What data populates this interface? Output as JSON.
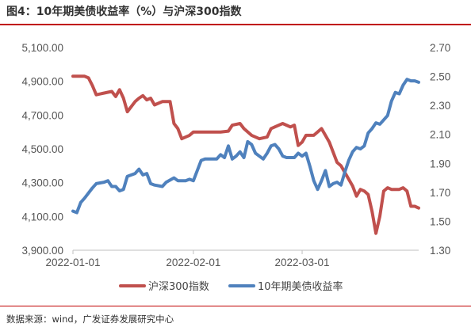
{
  "figure": {
    "title": "图4：10年期美债收益率（%）与沪深300指数",
    "source": "数据来源：wind，广发证券发展研究中心"
  },
  "colors": {
    "csi300": "#c0504d",
    "ust10y": "#4f81bd",
    "accent_rule": "#c00000"
  },
  "chart_data": {
    "type": "line",
    "title": "图4：10年期美债收益率（%）与沪深300指数",
    "x_axis": {
      "ticks": [
        "2022-01-01",
        "2022-02-01",
        "2022-03-01"
      ],
      "range": [
        "2022-01-01",
        "2022-03-31"
      ]
    },
    "y_left": {
      "ticks": [
        "5,100.00",
        "4,900.00",
        "4,700.00",
        "4,500.00",
        "4,300.00",
        "4,100.00",
        "3,900.00"
      ],
      "range": [
        3900,
        5100
      ]
    },
    "y_right": {
      "ticks": [
        "2.70",
        "2.50",
        "2.30",
        "2.10",
        "1.90",
        "1.70",
        "1.50",
        "1.30"
      ],
      "range": [
        1.3,
        2.7
      ]
    },
    "legend": {
      "position": "bottom"
    },
    "series": [
      {
        "name": "沪深300指数",
        "axis": "left",
        "color": "#c0504d",
        "points": [
          [
            "2022-01-01",
            4930
          ],
          [
            "2022-01-04",
            4930
          ],
          [
            "2022-01-05",
            4920
          ],
          [
            "2022-01-06",
            4875
          ],
          [
            "2022-01-07",
            4820
          ],
          [
            "2022-01-10",
            4835
          ],
          [
            "2022-01-11",
            4840
          ],
          [
            "2022-01-12",
            4810
          ],
          [
            "2022-01-13",
            4850
          ],
          [
            "2022-01-14",
            4800
          ],
          [
            "2022-01-15",
            4720
          ],
          [
            "2022-01-17",
            4780
          ],
          [
            "2022-01-18",
            4800
          ],
          [
            "2022-01-19",
            4815
          ],
          [
            "2022-01-20",
            4790
          ],
          [
            "2022-01-21",
            4800
          ],
          [
            "2022-01-22",
            4760
          ],
          [
            "2022-01-24",
            4780
          ],
          [
            "2022-01-26",
            4780
          ],
          [
            "2022-01-27",
            4650
          ],
          [
            "2022-01-28",
            4620
          ],
          [
            "2022-01-29",
            4560
          ],
          [
            "2022-01-31",
            4580
          ],
          [
            "2022-02-01",
            4600
          ],
          [
            "2022-02-08",
            4600
          ],
          [
            "2022-02-10",
            4605
          ],
          [
            "2022-02-11",
            4640
          ],
          [
            "2022-02-13",
            4650
          ],
          [
            "2022-02-14",
            4620
          ],
          [
            "2022-02-16",
            4580
          ],
          [
            "2022-02-18",
            4560
          ],
          [
            "2022-02-20",
            4570
          ],
          [
            "2022-02-21",
            4620
          ],
          [
            "2022-02-23",
            4640
          ],
          [
            "2022-02-24",
            4650
          ],
          [
            "2022-02-25",
            4640
          ],
          [
            "2022-02-26",
            4630
          ],
          [
            "2022-02-27",
            4640
          ],
          [
            "2022-02-28",
            4520
          ],
          [
            "2022-03-01",
            4540
          ],
          [
            "2022-03-02",
            4580
          ],
          [
            "2022-03-03",
            4580
          ],
          [
            "2022-03-04",
            4580
          ],
          [
            "2022-03-06",
            4620
          ],
          [
            "2022-03-07",
            4580
          ],
          [
            "2022-03-08",
            4540
          ],
          [
            "2022-03-09",
            4480
          ],
          [
            "2022-03-10",
            4420
          ],
          [
            "2022-03-11",
            4400
          ],
          [
            "2022-03-14",
            4280
          ],
          [
            "2022-03-15",
            4220
          ],
          [
            "2022-03-16",
            4260
          ],
          [
            "2022-03-17",
            4250
          ],
          [
            "2022-03-18",
            4230
          ],
          [
            "2022-03-19",
            4130
          ],
          [
            "2022-03-20",
            4000
          ],
          [
            "2022-03-21",
            4100
          ],
          [
            "2022-03-22",
            4250
          ],
          [
            "2022-03-23",
            4270
          ],
          [
            "2022-03-24",
            4260
          ],
          [
            "2022-03-25",
            4260
          ],
          [
            "2022-03-26",
            4260
          ],
          [
            "2022-03-27",
            4270
          ],
          [
            "2022-03-28",
            4250
          ],
          [
            "2022-03-29",
            4160
          ],
          [
            "2022-03-30",
            4160
          ],
          [
            "2022-03-31",
            4150
          ]
        ]
      },
      {
        "name": "10年期美债收益率",
        "axis": "right",
        "color": "#4f81bd",
        "points": [
          [
            "2022-01-01",
            1.57
          ],
          [
            "2022-01-02",
            1.56
          ],
          [
            "2022-01-03",
            1.63
          ],
          [
            "2022-01-04",
            1.66
          ],
          [
            "2022-01-06",
            1.73
          ],
          [
            "2022-01-07",
            1.76
          ],
          [
            "2022-01-09",
            1.77
          ],
          [
            "2022-01-10",
            1.78
          ],
          [
            "2022-01-11",
            1.74
          ],
          [
            "2022-01-12",
            1.74
          ],
          [
            "2022-01-13",
            1.71
          ],
          [
            "2022-01-14",
            1.72
          ],
          [
            "2022-01-15",
            1.81
          ],
          [
            "2022-01-17",
            1.83
          ],
          [
            "2022-01-18",
            1.86
          ],
          [
            "2022-01-19",
            1.82
          ],
          [
            "2022-01-20",
            1.83
          ],
          [
            "2022-01-21",
            1.76
          ],
          [
            "2022-01-22",
            1.75
          ],
          [
            "2022-01-24",
            1.74
          ],
          [
            "2022-01-25",
            1.77
          ],
          [
            "2022-01-27",
            1.8
          ],
          [
            "2022-01-28",
            1.78
          ],
          [
            "2022-01-30",
            1.78
          ],
          [
            "2022-01-31",
            1.79
          ],
          [
            "2022-02-01",
            1.78
          ],
          [
            "2022-02-03",
            1.92
          ],
          [
            "2022-02-04",
            1.93
          ],
          [
            "2022-02-07",
            1.93
          ],
          [
            "2022-02-08",
            1.96
          ],
          [
            "2022-02-09",
            1.94
          ],
          [
            "2022-02-10",
            2.02
          ],
          [
            "2022-02-11",
            1.93
          ],
          [
            "2022-02-12",
            1.95
          ],
          [
            "2022-02-13",
            1.98
          ],
          [
            "2022-02-14",
            1.94
          ],
          [
            "2022-02-15",
            2.05
          ],
          [
            "2022-02-16",
            2.03
          ],
          [
            "2022-02-17",
            1.97
          ],
          [
            "2022-02-19",
            1.93
          ],
          [
            "2022-02-20",
            1.97
          ],
          [
            "2022-02-21",
            2.02
          ],
          [
            "2022-02-22",
            2.03
          ],
          [
            "2022-02-23",
            2.0
          ],
          [
            "2022-02-24",
            1.95
          ],
          [
            "2022-02-25",
            1.94
          ],
          [
            "2022-02-26",
            1.94
          ],
          [
            "2022-02-27",
            1.94
          ],
          [
            "2022-02-28",
            1.97
          ],
          [
            "2022-03-01",
            1.95
          ],
          [
            "2022-03-02",
            1.97
          ],
          [
            "2022-03-03",
            1.88
          ],
          [
            "2022-03-04",
            1.78
          ],
          [
            "2022-03-05",
            1.72
          ],
          [
            "2022-03-06",
            1.78
          ],
          [
            "2022-03-07",
            1.85
          ],
          [
            "2022-03-08",
            1.74
          ],
          [
            "2022-03-09",
            1.76
          ],
          [
            "2022-03-10",
            1.77
          ],
          [
            "2022-03-11",
            1.75
          ],
          [
            "2022-03-12",
            1.84
          ],
          [
            "2022-03-13",
            1.92
          ],
          [
            "2022-03-14",
            1.98
          ],
          [
            "2022-03-15",
            2.01
          ],
          [
            "2022-03-16",
            2.0
          ],
          [
            "2022-03-17",
            2.02
          ],
          [
            "2022-03-18",
            2.11
          ],
          [
            "2022-03-19",
            2.14
          ],
          [
            "2022-03-20",
            2.18
          ],
          [
            "2022-03-21",
            2.17
          ],
          [
            "2022-03-22",
            2.2
          ],
          [
            "2022-03-23",
            2.23
          ],
          [
            "2022-03-24",
            2.33
          ],
          [
            "2022-03-25",
            2.39
          ],
          [
            "2022-03-26",
            2.38
          ],
          [
            "2022-03-27",
            2.44
          ],
          [
            "2022-03-28",
            2.48
          ],
          [
            "2022-03-29",
            2.47
          ],
          [
            "2022-03-30",
            2.47
          ],
          [
            "2022-03-31",
            2.46
          ]
        ]
      }
    ]
  }
}
